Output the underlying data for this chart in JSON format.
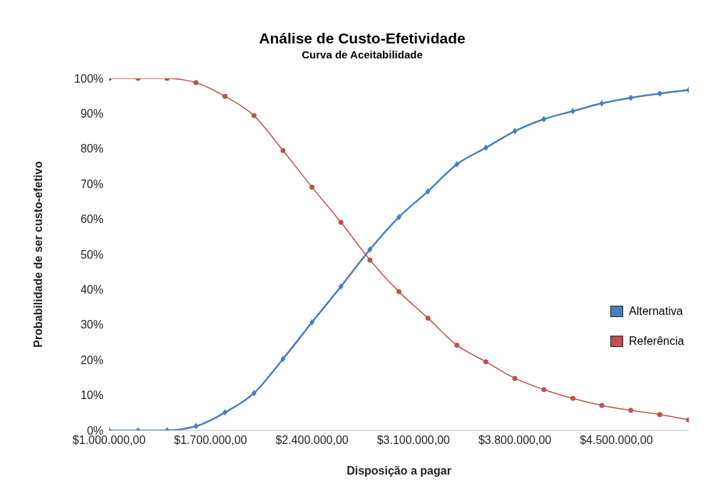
{
  "chart_data": {
    "type": "line",
    "title": "Análise de Custo-Efetividade",
    "subtitle": "Curva de Aceitabilidade",
    "xlabel": "Disposição a pagar",
    "ylabel": "Probabilidade de ser custo-efetivo",
    "x": [
      1000000,
      1200000,
      1400000,
      1600000,
      1800000,
      2000000,
      2200000,
      2400000,
      2600000,
      2800000,
      3000000,
      3200000,
      3400000,
      3600000,
      3800000,
      4000000,
      4200000,
      4400000,
      4600000,
      4800000,
      5000000
    ],
    "series": [
      {
        "name": "Alternativa",
        "color": "#4a7ebb",
        "marker": "diamond",
        "values": [
          0,
          0,
          0,
          1.2,
          5.1,
          10.6,
          20.3,
          30.7,
          40.9,
          51.4,
          60.6,
          67.9,
          75.6,
          80.3,
          85.0,
          88.4,
          90.7,
          92.9,
          94.5,
          95.7,
          96.7
        ]
      },
      {
        "name": "Referência",
        "color": "#c0504d",
        "marker": "circle",
        "values": [
          100,
          100,
          100,
          98.8,
          94.9,
          89.4,
          79.5,
          69.1,
          59.1,
          48.4,
          39.4,
          31.9,
          24.2,
          19.5,
          14.8,
          11.6,
          9.1,
          7.1,
          5.7,
          4.5,
          3.0
        ]
      }
    ],
    "xlim": [
      1000000,
      5000000
    ],
    "xticks": [
      {
        "value": 1000000,
        "label": "$1.000.000,00"
      },
      {
        "value": 1700000,
        "label": "$1.700.000,00"
      },
      {
        "value": 2400000,
        "label": "$2.400.000,00"
      },
      {
        "value": 3100000,
        "label": "$3.100.000,00"
      },
      {
        "value": 3800000,
        "label": "$3.800.000,00"
      },
      {
        "value": 4500000,
        "label": "$4.500.000,00"
      }
    ],
    "ylim": [
      0,
      100
    ],
    "yticks": [
      {
        "value": 0,
        "label": "0%"
      },
      {
        "value": 10,
        "label": "10%"
      },
      {
        "value": 20,
        "label": "20%"
      },
      {
        "value": 30,
        "label": "30%"
      },
      {
        "value": 40,
        "label": "40%"
      },
      {
        "value": 50,
        "label": "50%"
      },
      {
        "value": 60,
        "label": "60%"
      },
      {
        "value": 70,
        "label": "70%"
      },
      {
        "value": 80,
        "label": "80%"
      },
      {
        "value": 90,
        "label": "90%"
      },
      {
        "value": 100,
        "label": "100%"
      }
    ],
    "grid": false,
    "legend": "right",
    "line_style": "solid"
  }
}
